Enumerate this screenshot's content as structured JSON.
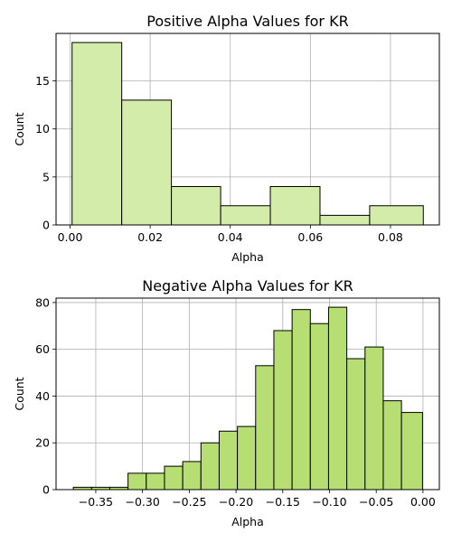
{
  "colors": {
    "positive_fill": "#d3ecaa",
    "negative_fill": "#b6de73",
    "edge": "#000000",
    "grid": "#b0b0b0"
  },
  "chart_data": [
    {
      "type": "bar",
      "title": "Positive Alpha Values for KR",
      "xlabel": "Alpha",
      "ylabel": "Count",
      "grid": true,
      "xlim": [
        -0.0035,
        0.0922
      ],
      "ylim": [
        0,
        19.95
      ],
      "xticks": [
        0.0,
        0.02,
        0.04,
        0.06,
        0.08
      ],
      "xtick_labels": [
        "0.00",
        "0.02",
        "0.04",
        "0.06",
        "0.08"
      ],
      "yticks": [
        0,
        5,
        10,
        15
      ],
      "ytick_labels": [
        "0",
        "5",
        "10",
        "15"
      ],
      "bin_edges": [
        0.0005,
        0.0129,
        0.0253,
        0.0376,
        0.05,
        0.0624,
        0.0748,
        0.0882
      ],
      "values": [
        19,
        13,
        4,
        2,
        4,
        1,
        2
      ]
    },
    {
      "type": "bar",
      "title": "Negative Alpha Values for KR",
      "xlabel": "Alpha",
      "ylabel": "Count",
      "grid": true,
      "xlim": [
        -0.3925,
        0.0175
      ],
      "ylim": [
        0,
        81.9
      ],
      "xticks": [
        -0.35,
        -0.3,
        -0.25,
        -0.2,
        -0.15,
        -0.1,
        -0.05,
        0.0
      ],
      "xtick_labels": [
        "−0.35",
        "−0.30",
        "−0.25",
        "−0.20",
        "−0.15",
        "−0.10",
        "−0.05",
        "0.00"
      ],
      "yticks": [
        0,
        20,
        40,
        60,
        80
      ],
      "ytick_labels": [
        "0",
        "20",
        "40",
        "60",
        "80"
      ],
      "bin_edges": [
        -0.374,
        -0.3545,
        -0.335,
        -0.3155,
        -0.296,
        -0.2765,
        -0.257,
        -0.2375,
        -0.218,
        -0.1985,
        -0.179,
        -0.1595,
        -0.14,
        -0.1205,
        -0.101,
        -0.0815,
        -0.062,
        -0.0425,
        -0.023,
        -0.0005
      ],
      "values": [
        1,
        1,
        1,
        7,
        7,
        10,
        12,
        20,
        25,
        27,
        53,
        68,
        77,
        71,
        78,
        56,
        61,
        38,
        33
      ]
    }
  ]
}
